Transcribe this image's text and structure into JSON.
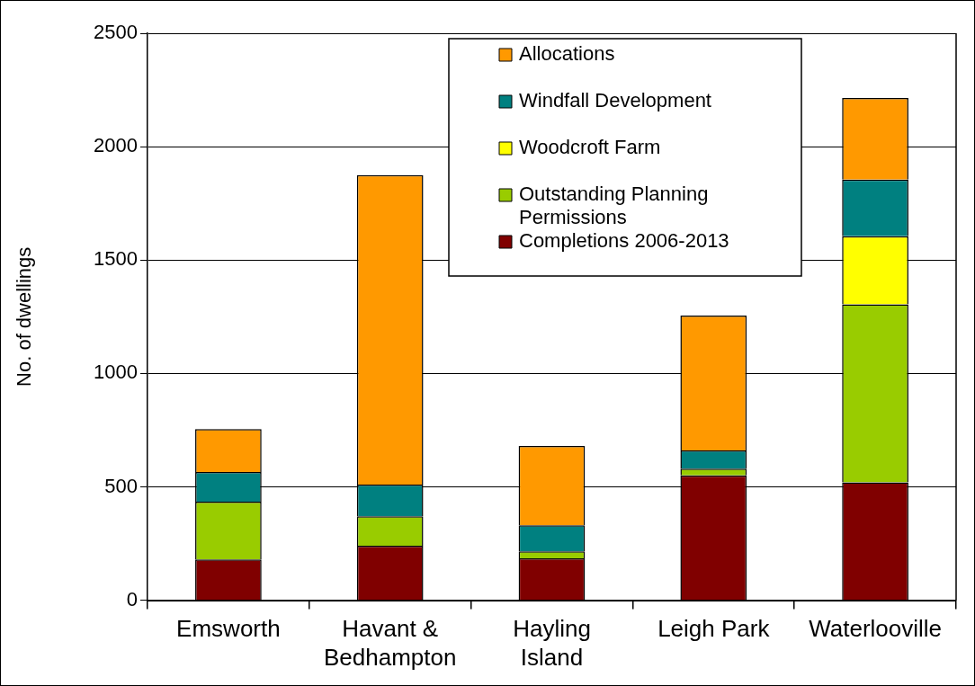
{
  "chart_data": {
    "type": "bar",
    "stacked": true,
    "ylabel": "No. of dwellings",
    "categories": [
      "Emsworth",
      "Havant & Bedhampton",
      "Hayling Island",
      "Leigh Park",
      "Waterlooville"
    ],
    "series": [
      {
        "name": "Completions 2006-2013",
        "color": "#800000",
        "values": [
          180,
          240,
          185,
          550,
          520
        ]
      },
      {
        "name": "Outstanding Planning Permissions",
        "color": "#99cc00",
        "values": [
          255,
          130,
          30,
          30,
          785
        ]
      },
      {
        "name": "Woodcroft Farm",
        "color": "#ffff00",
        "values": [
          0,
          0,
          0,
          0,
          300
        ]
      },
      {
        "name": "Windfall Development",
        "color": "#008080",
        "values": [
          130,
          140,
          115,
          80,
          250
        ]
      },
      {
        "name": "Allocations",
        "color": "#ff9900",
        "values": [
          190,
          1365,
          350,
          595,
          360
        ]
      }
    ],
    "ylim": [
      0,
      2500
    ],
    "yticks": [
      0,
      500,
      1000,
      1500,
      2000,
      2500
    ],
    "grid": "y",
    "legend": "top right"
  }
}
